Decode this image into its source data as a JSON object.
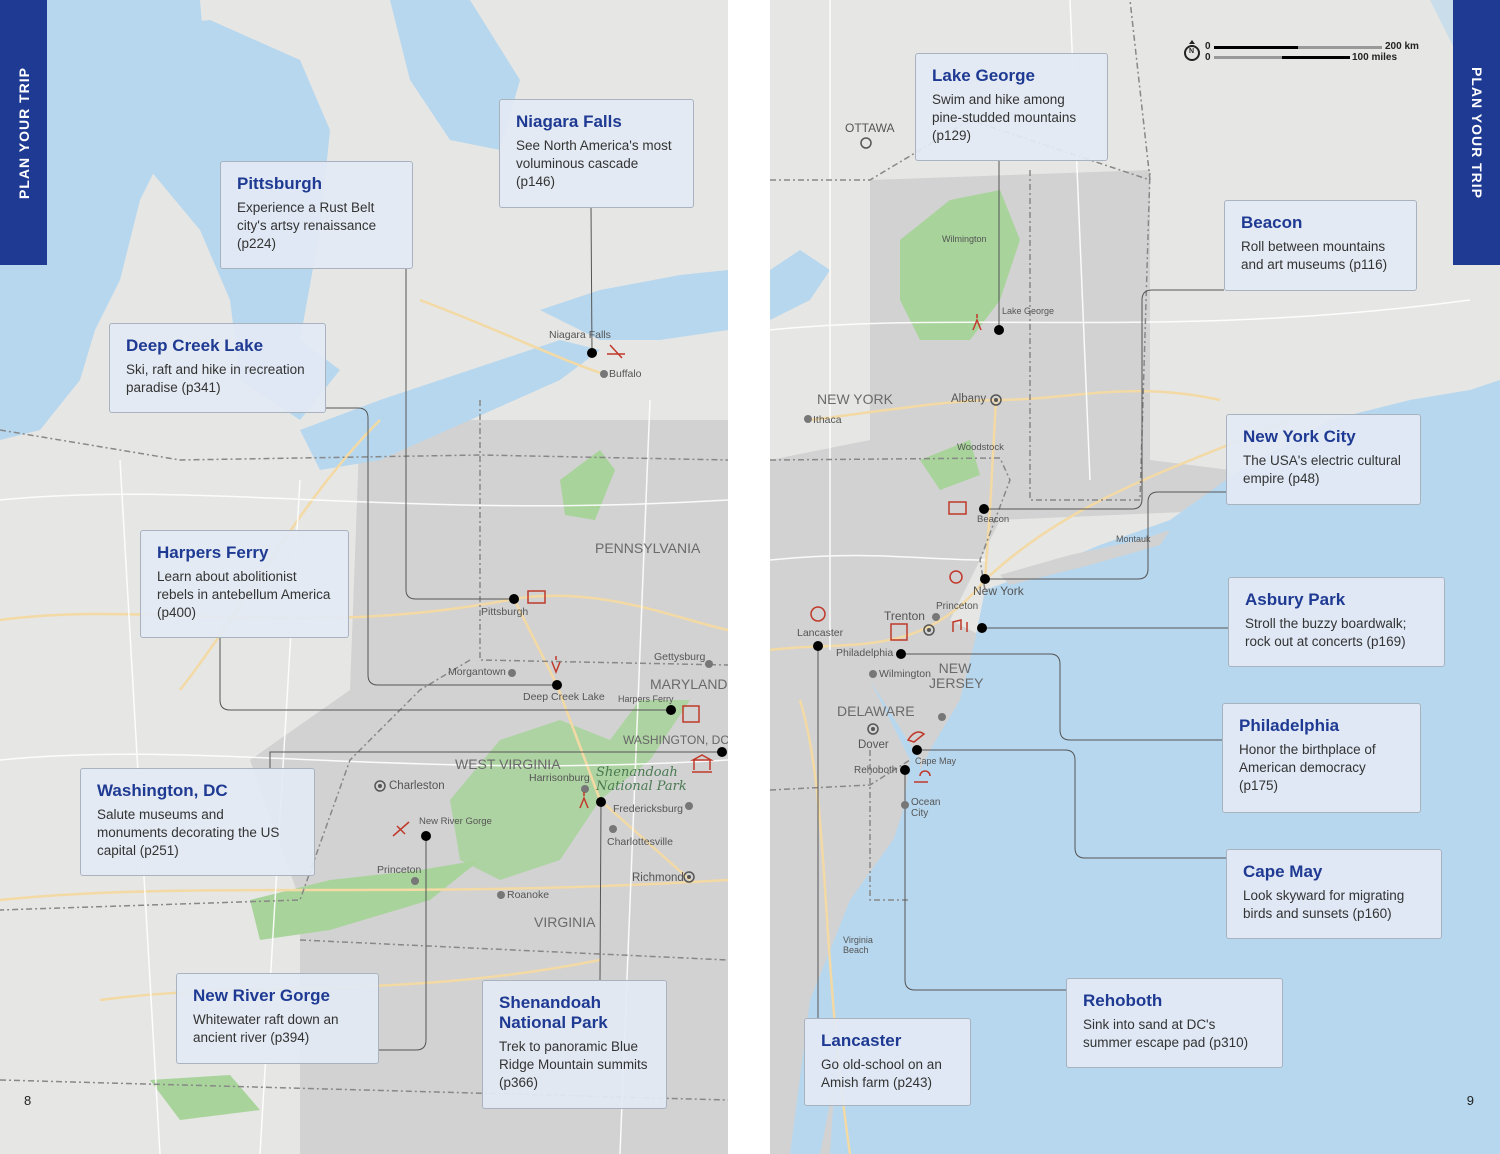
{
  "side_tabs": {
    "left": "PLAN YOUR TRIP",
    "right": "PLAN YOUR TRIP"
  },
  "page_numbers": {
    "left": "8",
    "right": "9"
  },
  "scale": {
    "km_zero": "0",
    "km_label": "200 km",
    "mi_zero": "0",
    "mi_label": "100 miles",
    "north": "N"
  },
  "colors": {
    "accent": "#1f3a93",
    "water": "#b7d7ee",
    "land": "#dcdcdc",
    "park": "#a8d39a",
    "card": "#e2eaf4",
    "icon": "#c0392b"
  },
  "left_cards": [
    {
      "title": "Niagara Falls",
      "text": "See North America's most voluminous cascade (p146)"
    },
    {
      "title": "Pittsburgh",
      "text": "Experience a Rust Belt city's artsy renaissance (p224)"
    },
    {
      "title": "Deep Creek Lake",
      "text": "Ski, raft and hike in recreation paradise (p341)"
    },
    {
      "title": "Harpers Ferry",
      "text": "Learn about abolitionist rebels in antebellum America (p400)"
    },
    {
      "title": "Washington, DC",
      "text": "Salute museums and monuments decorating the US capital (p251)"
    },
    {
      "title": "New River Gorge",
      "text": "Whitewater raft down an ancient river (p394)"
    },
    {
      "title": "Shenandoah National Park",
      "text": "Trek to panoramic Blue Ridge Mountain summits (p366)"
    }
  ],
  "right_cards": [
    {
      "title": "Lake George",
      "text": "Swim and hike among pine-studded mountains (p129)"
    },
    {
      "title": "Beacon",
      "text": "Roll between mountains and art museums (p116)"
    },
    {
      "title": "New York City",
      "text": "The USA's electric cultural empire (p48)"
    },
    {
      "title": "Asbury Park",
      "text": "Stroll the buzzy boardwalk; rock out at concerts (p169)"
    },
    {
      "title": "Philadelphia",
      "text": "Honor the birthplace of American democracy (p175)"
    },
    {
      "title": "Cape May",
      "text": "Look skyward for migrating birds and sunsets (p160)"
    },
    {
      "title": "Rehoboth",
      "text": "Sink into sand at DC's summer escape pad (p310)"
    },
    {
      "title": "Lancaster",
      "text": "Go old-school on an Amish farm (p243)"
    }
  ],
  "left_places": [
    "Niagara Falls",
    "Buffalo",
    "Pittsburgh",
    "Morgantown",
    "Deep Creek Lake",
    "Gettysburg",
    "Harpers Ferry",
    "WASHINGTON, DC",
    "Charleston",
    "Harrisonburg",
    "Fredericksburg",
    "New River Gorge",
    "Charlottesville",
    "Princeton",
    "Richmond",
    "Roanoke"
  ],
  "left_states": [
    "PENNSYLVANIA",
    "MARYLAND",
    "WEST VIRGINIA",
    "VIRGINIA"
  ],
  "left_park": "Shenandoah National Park",
  "right_places": [
    "OTTAWA",
    "Wilmington",
    "Lake George",
    "Albany",
    "Ithaca",
    "Woodstock",
    "Beacon",
    "Montauk",
    "New York",
    "Princeton",
    "Trenton",
    "Lancaster",
    "Philadelphia",
    "Wilmington",
    "Dover",
    "Cape May",
    "Rehoboth",
    "Ocean City",
    "Virginia Beach"
  ],
  "right_states": [
    "NEW YORK",
    "NEW JERSEY",
    "DELAWARE"
  ]
}
